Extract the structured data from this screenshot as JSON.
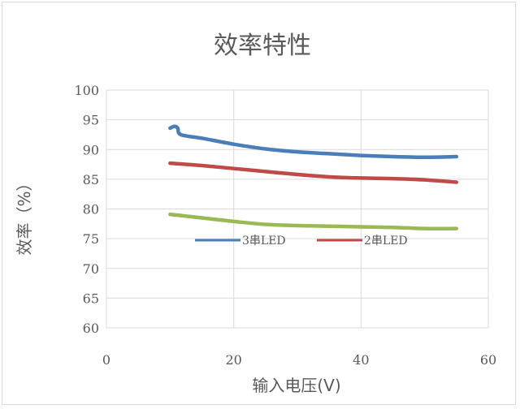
{
  "chart_data": {
    "type": "line",
    "title": "效率特性",
    "xlabel": "输入电压(V)",
    "ylabel": "效率（%）",
    "xlim": [
      0,
      60
    ],
    "ylim": [
      60,
      100
    ],
    "x_ticks": [
      "0",
      "20",
      "40",
      "60"
    ],
    "y_ticks": [
      "60",
      "65",
      "70",
      "75",
      "80",
      "85",
      "90",
      "95",
      "100"
    ],
    "grid": true,
    "legend_placement": "center",
    "series": [
      {
        "name": "3串LED",
        "color": "#4a7ebb",
        "points": [
          [
            10,
            93.6
          ],
          [
            10.7,
            93.9
          ],
          [
            11.2,
            93.6
          ],
          [
            11.7,
            92.5
          ],
          [
            15,
            91.9
          ],
          [
            20,
            90.9
          ],
          [
            25,
            90.1
          ],
          [
            30,
            89.6
          ],
          [
            35,
            89.3
          ],
          [
            40,
            89.0
          ],
          [
            45,
            88.8
          ],
          [
            50,
            88.7
          ],
          [
            55,
            88.8
          ]
        ]
      },
      {
        "name": "2串LED",
        "color": "#be4b48",
        "points": [
          [
            10,
            87.7
          ],
          [
            15,
            87.3
          ],
          [
            20,
            86.8
          ],
          [
            25,
            86.3
          ],
          [
            30,
            85.8
          ],
          [
            35,
            85.4
          ],
          [
            40,
            85.2
          ],
          [
            45,
            85.1
          ],
          [
            50,
            84.9
          ],
          [
            55,
            84.5
          ]
        ]
      },
      {
        "name": "",
        "color": "#98b954",
        "points": [
          [
            10,
            79.1
          ],
          [
            15,
            78.5
          ],
          [
            20,
            77.9
          ],
          [
            25,
            77.4
          ],
          [
            30,
            77.2
          ],
          [
            35,
            77.1
          ],
          [
            40,
            77.0
          ],
          [
            45,
            76.9
          ],
          [
            50,
            76.7
          ],
          [
            55,
            76.7
          ]
        ]
      }
    ]
  }
}
